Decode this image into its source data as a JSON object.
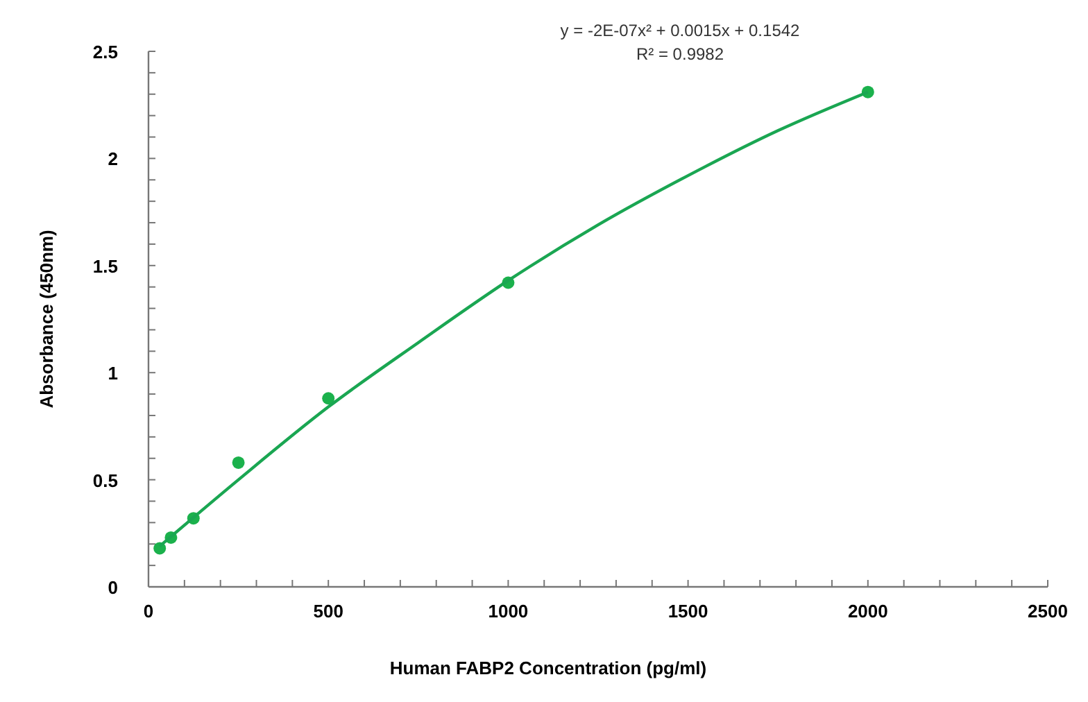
{
  "chart_data": {
    "type": "scatter",
    "xlabel": "Human FABP2 Concentration (pg/ml)",
    "ylabel": "Absorbance (450nm)",
    "annotations": [
      "y = -2E-07x² + 0.0015x + 0.1542\nR² = 0.9982"
    ],
    "xlim": [
      0,
      2500
    ],
    "ylim": [
      0,
      2.5
    ],
    "xticks": [
      0,
      {
        "value": 100,
        "label": null
      },
      {
        "value": 200,
        "label": null
      },
      {
        "value": 300,
        "label": null
      },
      {
        "value": 400,
        "label": null
      },
      500,
      {
        "value": 600,
        "label": null
      },
      {
        "value": 700,
        "label": null
      },
      {
        "value": 800,
        "label": null
      },
      {
        "value": 900,
        "label": null
      },
      1000,
      {
        "value": 1100,
        "label": null
      },
      {
        "value": 1200,
        "label": null
      },
      {
        "value": 1300,
        "label": null
      },
      {
        "value": 1400,
        "label": null
      },
      1500,
      {
        "value": 1600,
        "label": null
      },
      {
        "value": 1700,
        "label": null
      },
      {
        "value": 1800,
        "label": null
      },
      {
        "value": 1900,
        "label": null
      },
      2000,
      {
        "value": 2100,
        "label": null
      },
      {
        "value": 2200,
        "label": null
      },
      {
        "value": 2300,
        "label": null
      },
      {
        "value": 2400,
        "label": null
      },
      2500
    ],
    "yticks": [
      0,
      {
        "value": 0.1,
        "label": null
      },
      {
        "value": 0.2,
        "label": null
      },
      {
        "value": 0.3,
        "label": null
      },
      {
        "value": 0.4,
        "label": null
      },
      0.5,
      {
        "value": 0.6,
        "label": null
      },
      {
        "value": 0.7,
        "label": null
      },
      {
        "value": 0.8,
        "label": null
      },
      {
        "value": 0.9,
        "label": null
      },
      1,
      {
        "value": 1.1,
        "label": null
      },
      {
        "value": 1.2,
        "label": null
      },
      {
        "value": 1.3,
        "label": null
      },
      {
        "value": 1.4,
        "label": null
      },
      1.5,
      {
        "value": 1.6,
        "label": null
      },
      {
        "value": 1.7,
        "label": null
      },
      {
        "value": 1.8,
        "label": null
      },
      {
        "value": 1.9,
        "label": null
      },
      2,
      {
        "value": 2.1,
        "label": null
      },
      {
        "value": 2.2,
        "label": null
      },
      {
        "value": 2.3,
        "label": null
      },
      {
        "value": 2.4,
        "label": null
      },
      2.5
    ],
    "grid": false,
    "series": [
      {
        "color": "#1bb14c",
        "marker": "circle",
        "x": [
          31.25,
          62.5,
          125,
          250,
          500,
          1000,
          2000
        ],
        "values": [
          0.18,
          0.23,
          0.32,
          0.58,
          0.88,
          1.42,
          2.31
        ]
      },
      {
        "type": "line",
        "color": "#1aa652",
        "marker": "none",
        "line_style": "solid",
        "x": [
          31.25,
          250,
          500,
          750,
          1000,
          1250,
          1500,
          1750,
          2000
        ],
        "values": [
          0.19,
          0.5,
          0.84,
          1.14,
          1.43,
          1.69,
          1.92,
          2.13,
          2.31
        ]
      }
    ]
  }
}
